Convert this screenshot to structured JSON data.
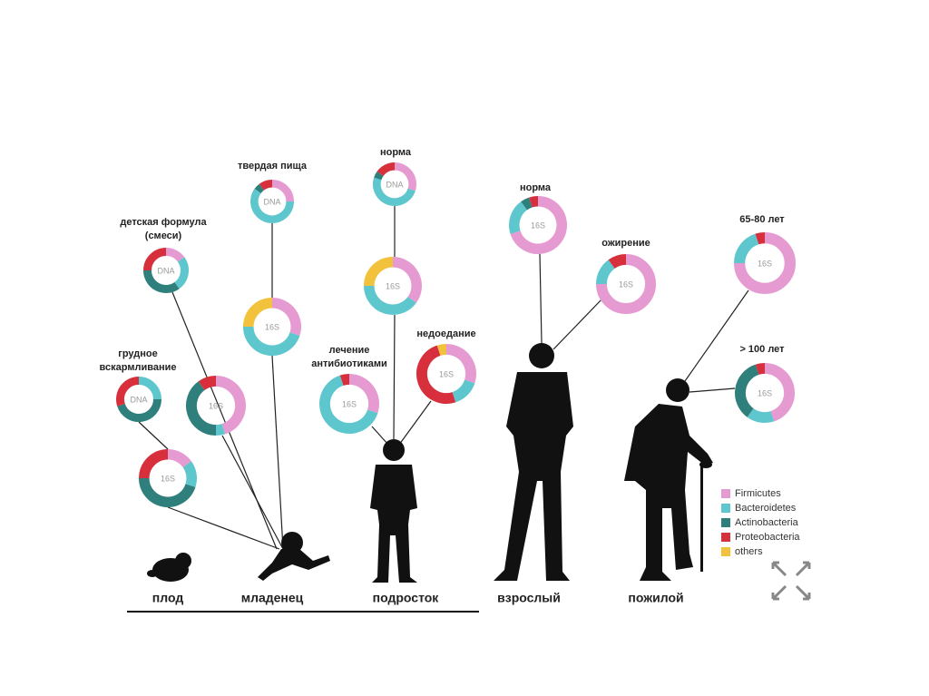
{
  "figure": {
    "donuts": [
      {
        "label": [
          "грудное",
          "вскармливание"
        ],
        "center": "DNA",
        "segments": [
          0,
          25,
          45,
          30,
          0
        ]
      },
      {
        "label": [
          "детская формула",
          "(смеси)"
        ],
        "center": "DNA",
        "segments": [
          15,
          25,
          35,
          25,
          0
        ]
      },
      {
        "center": "16S",
        "segments": [
          15,
          15,
          45,
          25,
          0
        ]
      },
      {
        "center": "16S",
        "segments": [
          45,
          5,
          40,
          10,
          0
        ]
      },
      {
        "label": [
          "твердая пища"
        ],
        "center": "DNA",
        "segments": [
          25,
          60,
          5,
          10,
          0
        ]
      },
      {
        "center": "16S",
        "segments": [
          30,
          45,
          0,
          0,
          25
        ]
      },
      {
        "label": [
          "норма"
        ],
        "center": "DNA",
        "segments": [
          30,
          50,
          5,
          15,
          0
        ]
      },
      {
        "center": "16S",
        "segments": [
          35,
          40,
          0,
          0,
          25
        ]
      },
      {
        "label": [
          "лечение",
          "антибиотиками"
        ],
        "center": "16S",
        "segments": [
          30,
          65,
          0,
          5,
          0
        ]
      },
      {
        "label": [
          "недоедание"
        ],
        "center": "16S",
        "segments": [
          30,
          15,
          0,
          50,
          5
        ]
      },
      {
        "label": [
          "норма"
        ],
        "center": "16S",
        "segments": [
          70,
          20,
          5,
          5,
          0
        ]
      },
      {
        "label": [
          "ожирение"
        ],
        "center": "16S",
        "segments": [
          75,
          15,
          0,
          10,
          0
        ]
      },
      {
        "label": [
          "65-80 лет"
        ],
        "center": "16S",
        "segments": [
          75,
          20,
          0,
          5,
          0
        ]
      },
      {
        "label": [
          "> 100 лет"
        ],
        "center": "16S",
        "segments": [
          45,
          15,
          35,
          5,
          0
        ]
      }
    ],
    "legend": [
      {
        "name": "Firmicutes",
        "color": "#e59bd2"
      },
      {
        "name": "Bacteroidetes",
        "color": "#5ec6cd"
      },
      {
        "name": "Actinobacteria",
        "color": "#2f7f7c"
      },
      {
        "name": "Proteobacteria",
        "color": "#d7303c"
      },
      {
        "name": "others",
        "color": "#f2c23c"
      }
    ],
    "stages": [
      "плод",
      "младенец",
      "подросток",
      "взрослый",
      "пожилой"
    ]
  }
}
